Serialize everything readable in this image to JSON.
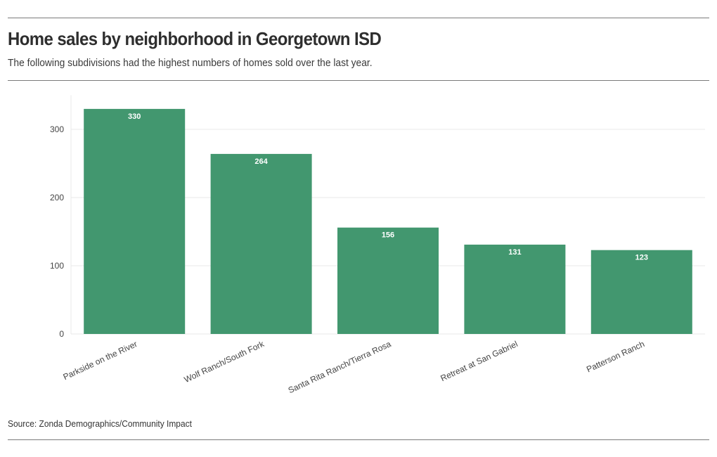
{
  "header": {
    "title": "Home sales by neighborhood in Georgetown ISD",
    "subtitle": "The following subdivisions had the highest numbers of homes sold over the last year."
  },
  "footer": {
    "source": "Source: Zonda Demographics/Community Impact"
  },
  "colors": {
    "bar": "#42976f",
    "grid": "#e8e8e8",
    "rule": "#7a7a7a"
  },
  "chart_data": {
    "type": "bar",
    "categories": [
      "Parkside on the River",
      "Wolf Ranch/South Fork",
      "Santa Rita Ranch/Tierra Rosa",
      "Retreat at San Gabriel",
      "Patterson Ranch"
    ],
    "values": [
      330,
      264,
      156,
      131,
      123
    ],
    "data_labels": [
      "330",
      "264",
      "156",
      "131",
      "123"
    ],
    "ylim": [
      0,
      350
    ],
    "yticks": [
      0,
      100,
      200,
      300
    ],
    "ytick_labels": [
      "0",
      "100",
      "200",
      "300"
    ],
    "grid": true,
    "legend": "none",
    "xlabel": "",
    "ylabel": ""
  }
}
